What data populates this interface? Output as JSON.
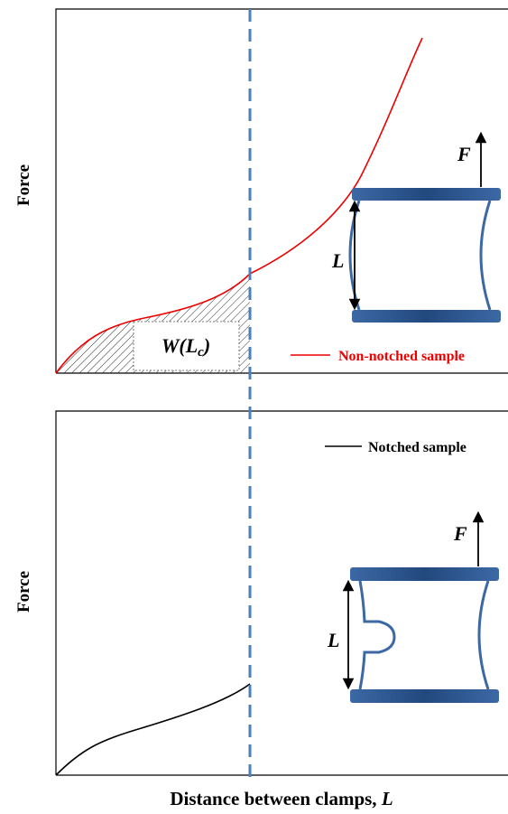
{
  "top_panel": {
    "y_label": "Force",
    "legend": "Non-notched sample",
    "area_label": {
      "main": "W(L",
      "sub": "c",
      "close": ")"
    },
    "force_label": "F",
    "length_label": "L"
  },
  "bottom_panel": {
    "y_label": "Force",
    "legend": "Notched sample",
    "force_label": "F",
    "length_label": "L"
  },
  "x_label": {
    "text": "Distance between clamps,",
    "variable": "L"
  }
}
